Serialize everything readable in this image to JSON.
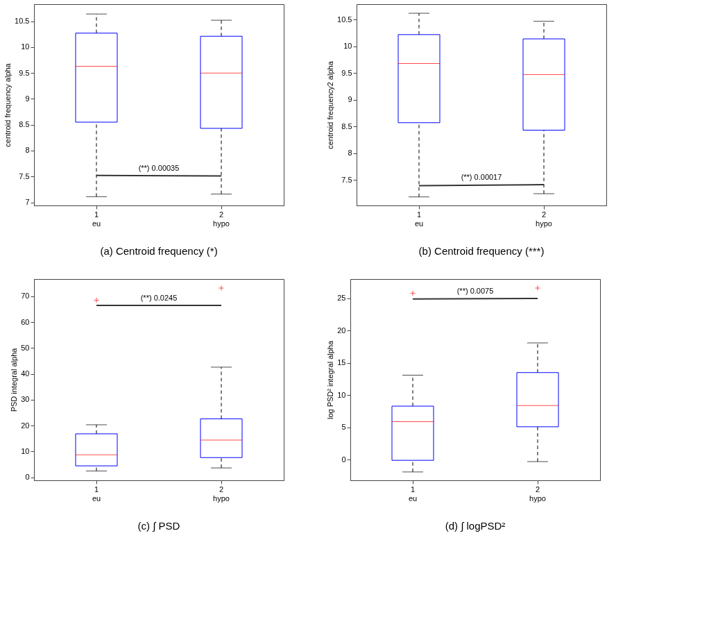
{
  "chart_data": [
    {
      "type": "box",
      "title": "(a) Centroid frequency (*)",
      "ylabel": "centroid frequency alpha",
      "categories": [
        "1\neu",
        "2\nhypo"
      ],
      "ylim": [
        6.94,
        10.83
      ],
      "yticks": [
        7,
        7.5,
        8,
        8.5,
        9,
        9.5,
        10,
        10.5
      ],
      "grid": false,
      "annotations": [
        "(**) 0.00035"
      ],
      "boxes": [
        {
          "low": 7.11,
          "q1": 8.55,
          "median": 9.63,
          "q3": 10.27,
          "high": 10.64
        },
        {
          "low": 7.16,
          "q1": 8.43,
          "median": 9.5,
          "q3": 10.21,
          "high": 10.52
        }
      ],
      "series": [
        {
          "type": "line",
          "color": "#333333",
          "x": [
            "1\neu",
            "2\nhypo"
          ],
          "values": [
            7.52,
            7.51
          ]
        }
      ]
    },
    {
      "type": "box",
      "title": "(b) Centroid frequency (***)",
      "ylabel": "centroid frequency2 alpha",
      "categories": [
        "1\neu",
        "2\nhypo"
      ],
      "ylim": [
        7.02,
        10.79
      ],
      "yticks": [
        7.5,
        8,
        8.5,
        9,
        9.5,
        10,
        10.5
      ],
      "grid": false,
      "annotations": [
        "(**) 0.00017"
      ],
      "boxes": [
        {
          "low": 7.18,
          "q1": 8.57,
          "median": 9.68,
          "q3": 10.22,
          "high": 10.62
        },
        {
          "low": 7.24,
          "q1": 8.43,
          "median": 9.47,
          "q3": 10.14,
          "high": 10.47
        }
      ],
      "series": [
        {
          "type": "line",
          "color": "#333333",
          "x": [
            "1\neu",
            "2\nhypo"
          ],
          "values": [
            7.39,
            7.41
          ]
        }
      ]
    },
    {
      "type": "box",
      "title": "(c) ∫ PSD",
      "ylabel": "PSD integral alpha",
      "categories": [
        "1\neu",
        "2\nhypo"
      ],
      "ylim": [
        -1.2,
        76.7
      ],
      "yticks": [
        0,
        10,
        20,
        30,
        40,
        50,
        60,
        70
      ],
      "grid": false,
      "annotations": [
        "(**) 0.0245"
      ],
      "boxes": [
        {
          "low": 2.4,
          "q1": 4.4,
          "median": 8.7,
          "q3": 16.8,
          "high": 20.3,
          "outliers": [
            68.5
          ]
        },
        {
          "low": 3.6,
          "q1": 7.6,
          "median": 14.4,
          "q3": 22.6,
          "high": 42.6,
          "outliers": [
            73.2
          ]
        }
      ],
      "series": [
        {
          "type": "line",
          "color": "#333333",
          "x": [
            "1\neu",
            "2\nhypo"
          ],
          "values": [
            66.5,
            66.5
          ]
        }
      ]
    },
    {
      "type": "box",
      "title": "(d) ∫ logPSD²",
      "ylabel": "log PSD² integral alpha",
      "categories": [
        "1\neu",
        "2\nhypo"
      ],
      "ylim": [
        -3.2,
        28
      ],
      "yticks": [
        0,
        5,
        10,
        15,
        20,
        25
      ],
      "grid": false,
      "annotations": [
        "(**) 0.0075"
      ],
      "boxes": [
        {
          "low": -1.9,
          "q1": -0.1,
          "median": 5.9,
          "q3": 8.3,
          "high": 13.1,
          "outliers": [
            25.8
          ]
        },
        {
          "low": -0.3,
          "q1": 5.1,
          "median": 8.4,
          "q3": 13.5,
          "high": 18.1,
          "outliers": [
            26.6
          ]
        }
      ],
      "series": [
        {
          "type": "line",
          "color": "#333333",
          "x": [
            "1\neu",
            "2\nhypo"
          ],
          "values": [
            24.9,
            25.0
          ]
        }
      ]
    }
  ]
}
